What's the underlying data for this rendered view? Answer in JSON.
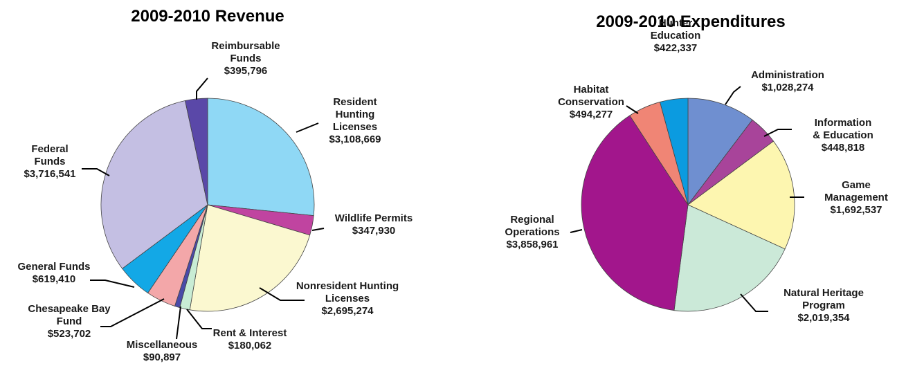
{
  "chart_data": [
    {
      "type": "pie",
      "title": "2009-2010 Revenue",
      "slices": [
        {
          "name": "Resident Hunting Licenses",
          "lines": [
            "Resident",
            "Hunting",
            "Licenses"
          ],
          "value": 3108669,
          "value_label": "$3,108,669",
          "color": "#8fd8f5"
        },
        {
          "name": "Wildlife Permits",
          "lines": [
            "Wildlife Permits"
          ],
          "value": 347930,
          "value_label": "$347,930",
          "color": "#c044a0"
        },
        {
          "name": "Nonresident Hunting Licenses",
          "lines": [
            "Nonresident Hunting",
            "Licenses"
          ],
          "value": 2695274,
          "value_label": "$2,695,274",
          "color": "#fbf8d0"
        },
        {
          "name": "Rent & Interest",
          "lines": [
            "Rent & Interest"
          ],
          "value": 180062,
          "value_label": "$180,062",
          "color": "#c8ecd4"
        },
        {
          "name": "Miscellaneous",
          "lines": [
            "Miscellaneous"
          ],
          "value": 90897,
          "value_label": "$90,897",
          "color": "#4a4aa8"
        },
        {
          "name": "Chesapeake Bay Fund",
          "lines": [
            "Chesapeake Bay",
            "Fund"
          ],
          "value": 523702,
          "value_label": "$523,702",
          "color": "#f3a7a9"
        },
        {
          "name": "General Funds",
          "lines": [
            "General Funds"
          ],
          "value": 619410,
          "value_label": "$619,410",
          "color": "#13a8e6"
        },
        {
          "name": "Federal Funds",
          "lines": [
            "Federal",
            "Funds"
          ],
          "value": 3716541,
          "value_label": "$3,716,541",
          "color": "#c4bfe3"
        },
        {
          "name": "Reimbursable Funds",
          "lines": [
            "Reimbursable",
            "Funds"
          ],
          "value": 395796,
          "value_label": "$395,796",
          "color": "#5a48a8"
        }
      ]
    },
    {
      "type": "pie",
      "title": "2009-2010 Expenditures",
      "slices": [
        {
          "name": "Administration",
          "lines": [
            "Administration"
          ],
          "value": 1028274,
          "value_label": "$1,028,274",
          "color": "#6f8fd0"
        },
        {
          "name": "Information & Education",
          "lines": [
            "Information",
            "& Education"
          ],
          "value": 448818,
          "value_label": "$448,818",
          "color": "#a8449a"
        },
        {
          "name": "Game Management",
          "lines": [
            "Game",
            "Management"
          ],
          "value": 1692537,
          "value_label": "$1,692,537",
          "color": "#fdf6b0"
        },
        {
          "name": "Natural Heritage Program",
          "lines": [
            "Natural Heritage",
            "Program"
          ],
          "value": 2019354,
          "value_label": "$2,019,354",
          "color": "#cbe9d8"
        },
        {
          "name": "Regional Operations",
          "lines": [
            "Regional",
            "Operations"
          ],
          "value": 3858961,
          "value_label": "$3,858,961",
          "color": "#a2168c"
        },
        {
          "name": "Habitat Conservation",
          "lines": [
            "Habitat",
            "Conservation"
          ],
          "value": 494277,
          "value_label": "$494,277",
          "color": "#f08575"
        },
        {
          "name": "Hunter Education",
          "lines": [
            "Hunter",
            "Education"
          ],
          "value": 422337,
          "value_label": "$422,337",
          "color": "#0b9be0"
        }
      ]
    }
  ]
}
